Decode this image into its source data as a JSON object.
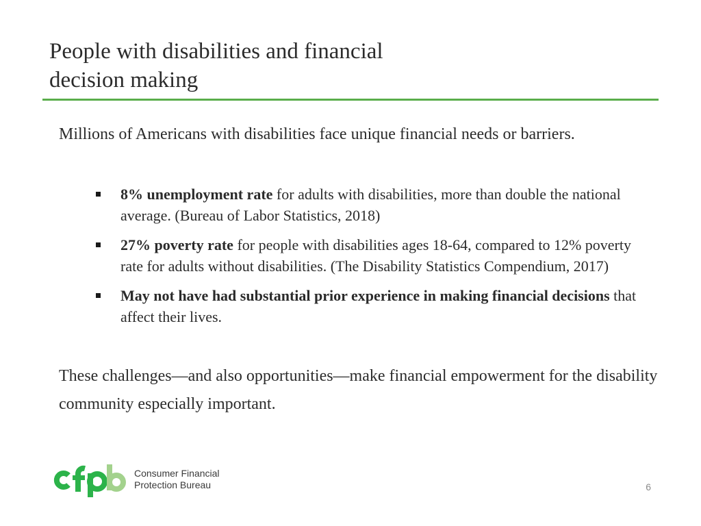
{
  "slide": {
    "title_line1": "People with disabilities and financial",
    "title_line2": "decision making",
    "intro": "Millions of Americans with disabilities face unique financial needs or barriers.",
    "bullets": [
      {
        "bold": "8% unemployment rate",
        "text": " for adults with disabilities, more than double the national average. (Bureau of Labor Statistics, 2018)"
      },
      {
        "bold": "27% poverty rate",
        "text": " for people with disabilities ages 18-64, compared to 12% poverty rate for adults without disabilities. (The Disability Statistics Compendium, 2017)"
      },
      {
        "bold": "May not have had substantial prior experience in making financial decisions",
        "text": " that affect their lives."
      }
    ],
    "closing": "These challenges—and also opportunities—make financial empowerment for the disability community especially important.",
    "page_number": "6"
  },
  "logo": {
    "mark_text": "cfpb",
    "line1": "Consumer Financial",
    "line2": "Protection Bureau"
  },
  "colors": {
    "accent_green": "#5aad4b",
    "logo_green": "#2cb34a",
    "logo_light_green": "#a3d28d"
  }
}
